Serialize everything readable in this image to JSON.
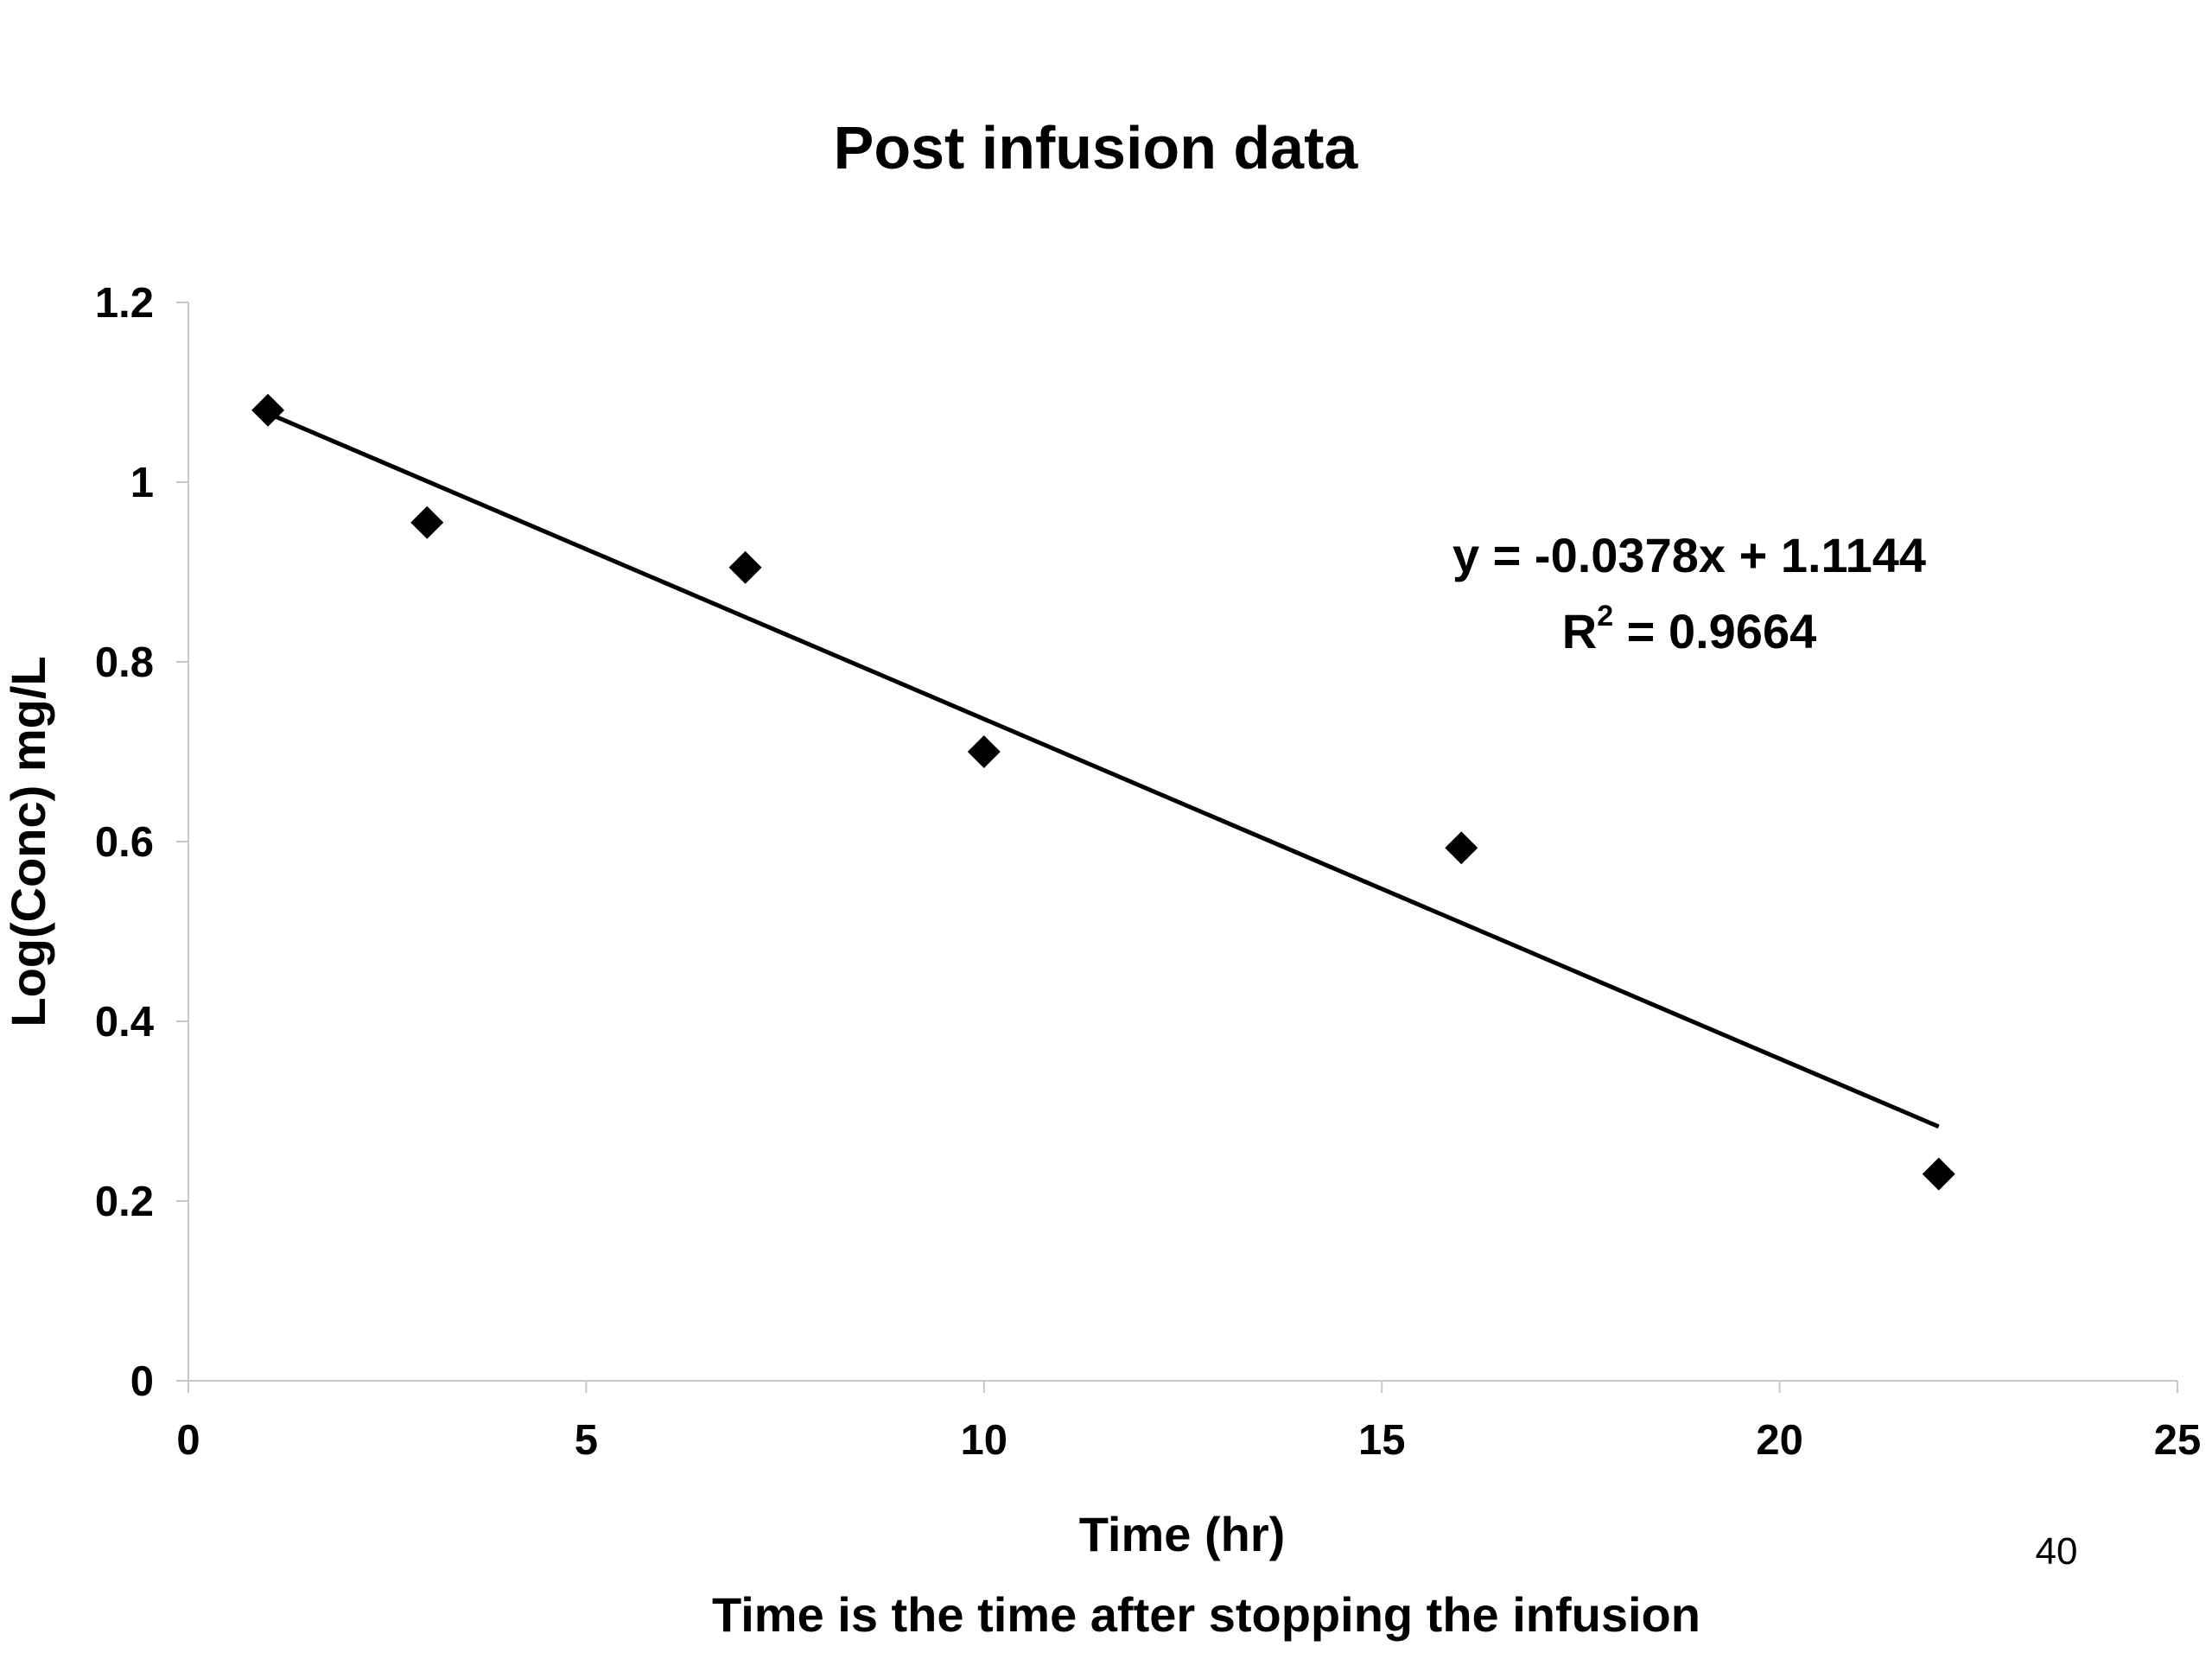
{
  "chart_data": {
    "type": "scatter",
    "title": "Post infusion data",
    "xlabel": "Time (hr)",
    "ylabel": "Log(Conc) mg/L",
    "xlim": [
      0,
      25
    ],
    "ylim": [
      0,
      1.2
    ],
    "x_ticks": [
      "0",
      "5",
      "10",
      "15",
      "20",
      "25"
    ],
    "y_ticks": [
      "0",
      "0.2",
      "0.4",
      "0.6",
      "0.8",
      "1",
      "1.2"
    ],
    "grid": false,
    "series": [
      {
        "marker": "diamond",
        "color": "#000000",
        "x": [
          1,
          3,
          7,
          10,
          16,
          22
        ],
        "y": [
          1.08,
          0.955,
          0.905,
          0.7,
          0.593,
          0.23
        ]
      }
    ],
    "trendline": {
      "type": "linear",
      "slope": -0.0378,
      "intercept": 1.1144,
      "x_range": [
        1,
        22
      ],
      "equation_text": "y = -0.0378x + 1.1144",
      "r2_prefix": "R",
      "r2_sup": "2",
      "r2_value": " = 0.9664"
    },
    "caption": "Time is the time after stopping the infusion",
    "page_number": "40"
  }
}
